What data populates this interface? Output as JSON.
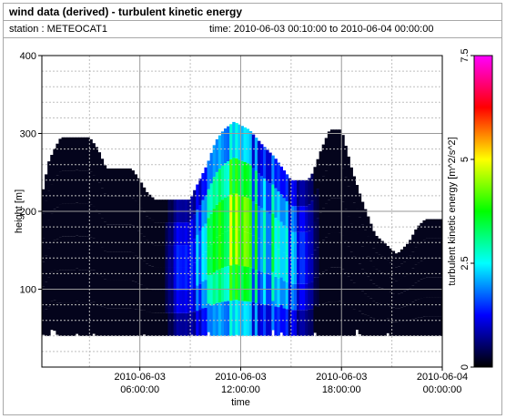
{
  "title": "wind data (derived) - turbulent kinetic energy",
  "station_text": "station : METEOCAT1",
  "time_text": "time: 2010-06-03 00:10:00 to 2010-06-04 00:00:00",
  "colors": {
    "background": "#04041c",
    "grid": "#bfbfbf",
    "frame": "#a8a8a8"
  },
  "chart_data": {
    "type": "heatmap",
    "xlabel": "time",
    "ylabel": "height [m]",
    "colorbar_label": "turbulent kinetic energy [m^2/s^2]",
    "x_range": [
      "2010-06-03 00:10:00",
      "2010-06-04 00:00:00"
    ],
    "x_ticks": [
      {
        "hour": 6,
        "line1": "2010-06-03",
        "line2": "06:00:00"
      },
      {
        "hour": 12,
        "line1": "2010-06-03",
        "line2": "12:00:00"
      },
      {
        "hour": 18,
        "line1": "2010-06-03",
        "line2": "18:00:00"
      },
      {
        "hour": 24,
        "line1": "2010-06-04",
        "line2": "00:00:00"
      }
    ],
    "ylim": [
      0,
      400
    ],
    "y_ticks": [
      100,
      200,
      300,
      400
    ],
    "y_minor_step": 20,
    "colorbar_range": [
      0,
      7.5
    ],
    "colorbar_ticks": [
      {
        "value": 0,
        "label": "0"
      },
      {
        "value": 2.5,
        "label": "2.5"
      },
      {
        "value": 5,
        "label": "5"
      },
      {
        "value": 7.5,
        "label": "7.5"
      }
    ],
    "colorscale": [
      "#000000",
      "#0000ff",
      "#00ffff",
      "#00ff00",
      "#ffff00",
      "#ff0000",
      "#ff00ff"
    ],
    "grid": true,
    "bottom_height_m": 40,
    "top_height_profile": [
      {
        "h": 0.0,
        "top": 220
      },
      {
        "h": 0.3,
        "top": 230
      },
      {
        "h": 0.5,
        "top": 260
      },
      {
        "h": 0.9,
        "top": 280
      },
      {
        "h": 1.3,
        "top": 295
      },
      {
        "h": 3.0,
        "top": 295
      },
      {
        "h": 3.5,
        "top": 280
      },
      {
        "h": 4.0,
        "top": 255
      },
      {
        "h": 5.5,
        "top": 255
      },
      {
        "h": 6.0,
        "top": 240
      },
      {
        "h": 6.4,
        "top": 225
      },
      {
        "h": 6.9,
        "top": 215
      },
      {
        "h": 9.0,
        "top": 215
      },
      {
        "h": 9.2,
        "top": 225
      },
      {
        "h": 10.0,
        "top": 260
      },
      {
        "h": 10.5,
        "top": 290
      },
      {
        "h": 11.0,
        "top": 305
      },
      {
        "h": 11.6,
        "top": 315
      },
      {
        "h": 12.5,
        "top": 305
      },
      {
        "h": 13.3,
        "top": 285
      },
      {
        "h": 14.0,
        "top": 270
      },
      {
        "h": 15.0,
        "top": 240
      },
      {
        "h": 16.0,
        "top": 240
      },
      {
        "h": 16.3,
        "top": 250
      },
      {
        "h": 16.8,
        "top": 280
      },
      {
        "h": 17.3,
        "top": 305
      },
      {
        "h": 18.0,
        "top": 305
      },
      {
        "h": 18.6,
        "top": 255
      },
      {
        "h": 19.2,
        "top": 215
      },
      {
        "h": 20.0,
        "top": 170
      },
      {
        "h": 21.3,
        "top": 145
      },
      {
        "h": 22.0,
        "top": 160
      },
      {
        "h": 22.5,
        "top": 180
      },
      {
        "h": 23.0,
        "top": 190
      },
      {
        "h": 24.0,
        "top": 190
      }
    ],
    "energy_profile": [
      {
        "h": 0.0,
        "e": 0.1
      },
      {
        "h": 7.2,
        "e": 0.1
      },
      {
        "h": 7.8,
        "e": 0.5
      },
      {
        "h": 8.5,
        "e": 1.2
      },
      {
        "h": 9.2,
        "e": 1.6
      },
      {
        "h": 9.8,
        "e": 2.0
      },
      {
        "h": 10.4,
        "e": 2.5
      },
      {
        "h": 11.0,
        "e": 3.0
      },
      {
        "h": 11.6,
        "e": 3.4
      },
      {
        "h": 12.2,
        "e": 3.0
      },
      {
        "h": 12.8,
        "e": 2.4
      },
      {
        "h": 13.4,
        "e": 2.2
      },
      {
        "h": 14.0,
        "e": 2.6
      },
      {
        "h": 14.6,
        "e": 2.0
      },
      {
        "h": 15.3,
        "e": 1.2
      },
      {
        "h": 16.0,
        "e": 0.8
      },
      {
        "h": 16.8,
        "e": 0.2
      },
      {
        "h": 24.0,
        "e": 0.05
      }
    ]
  }
}
